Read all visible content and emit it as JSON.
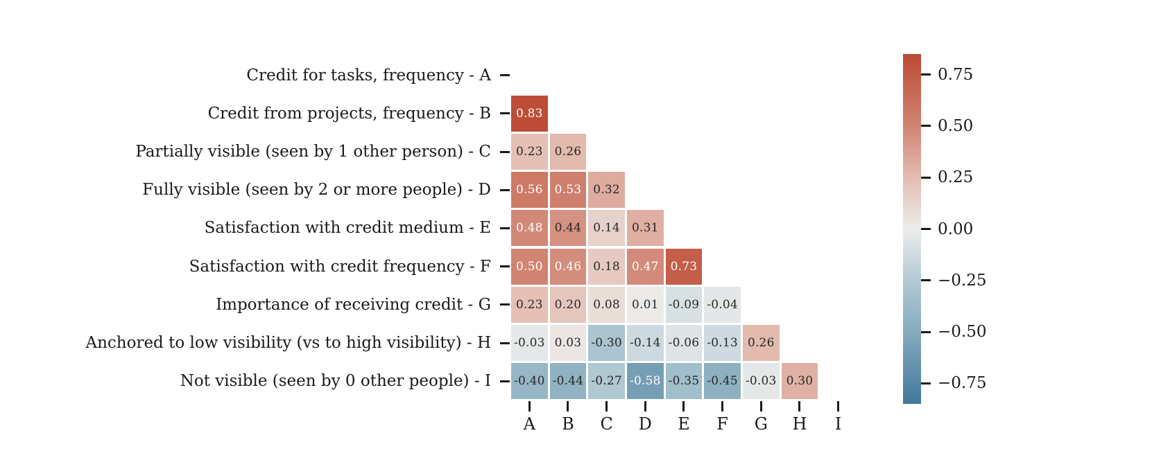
{
  "chart_data": {
    "type": "heatmap",
    "title": "",
    "description": "Lower-triangle correlation matrix of credit/visibility survey variables with annotated coefficients",
    "variables": [
      {
        "letter": "A",
        "label": "Credit for tasks, frequency - A"
      },
      {
        "letter": "B",
        "label": "Credit from projects, frequency - B"
      },
      {
        "letter": "C",
        "label": "Partially visible (seen by 1 other person) - C"
      },
      {
        "letter": "D",
        "label": "Fully visible (seen by 2 or more people) - D"
      },
      {
        "letter": "E",
        "label": "Satisfaction with credit medium - E"
      },
      {
        "letter": "F",
        "label": "Satisfaction with credit frequency - F"
      },
      {
        "letter": "G",
        "label": "Importance of receiving credit - G"
      },
      {
        "letter": "H",
        "label": "Anchored to low visibility (vs to high visibility) - H"
      },
      {
        "letter": "I",
        "label": "Not visible (seen by 0 other people) - I"
      }
    ],
    "matrix_lower_triangle": [
      [],
      [
        0.83
      ],
      [
        0.23,
        0.26
      ],
      [
        0.56,
        0.53,
        0.32
      ],
      [
        0.48,
        0.44,
        0.14,
        0.31
      ],
      [
        0.5,
        0.46,
        0.18,
        0.47,
        0.73
      ],
      [
        0.23,
        0.2,
        0.08,
        0.01,
        -0.09,
        -0.04
      ],
      [
        -0.03,
        0.03,
        -0.3,
        -0.14,
        -0.06,
        -0.13,
        0.26
      ],
      [
        -0.4,
        -0.44,
        -0.27,
        -0.58,
        -0.35,
        -0.45,
        -0.03,
        0.3
      ]
    ],
    "x_tick_labels": [
      "A",
      "B",
      "C",
      "D",
      "E",
      "F",
      "G",
      "H",
      "I"
    ],
    "colorbar": {
      "vmin": -0.85,
      "vmax": 0.85,
      "tick_values": [
        0.75,
        0.5,
        0.25,
        0,
        -0.25,
        -0.5,
        -0.75
      ],
      "tick_labels": [
        "0.75",
        "0.50",
        "0.25",
        "0.00",
        "−0.25",
        "−0.50",
        "−0.75"
      ]
    },
    "colormap_stops": [
      {
        "value": -0.85,
        "color": "#42789b"
      },
      {
        "value": -0.5,
        "color": "#85abbe"
      },
      {
        "value": -0.25,
        "color": "#b3cad4"
      },
      {
        "value": 0,
        "color": "#ececeb"
      },
      {
        "value": 0.25,
        "color": "#e3bcb1"
      },
      {
        "value": 0.5,
        "color": "#d08472"
      },
      {
        "value": 0.85,
        "color": "#bc4a33"
      }
    ],
    "annotation_text_colors": {
      "on_dark": "#ffffff",
      "on_light": "#262626"
    },
    "grid_line_color": "#ffffff",
    "background_color": "#ffffff"
  }
}
